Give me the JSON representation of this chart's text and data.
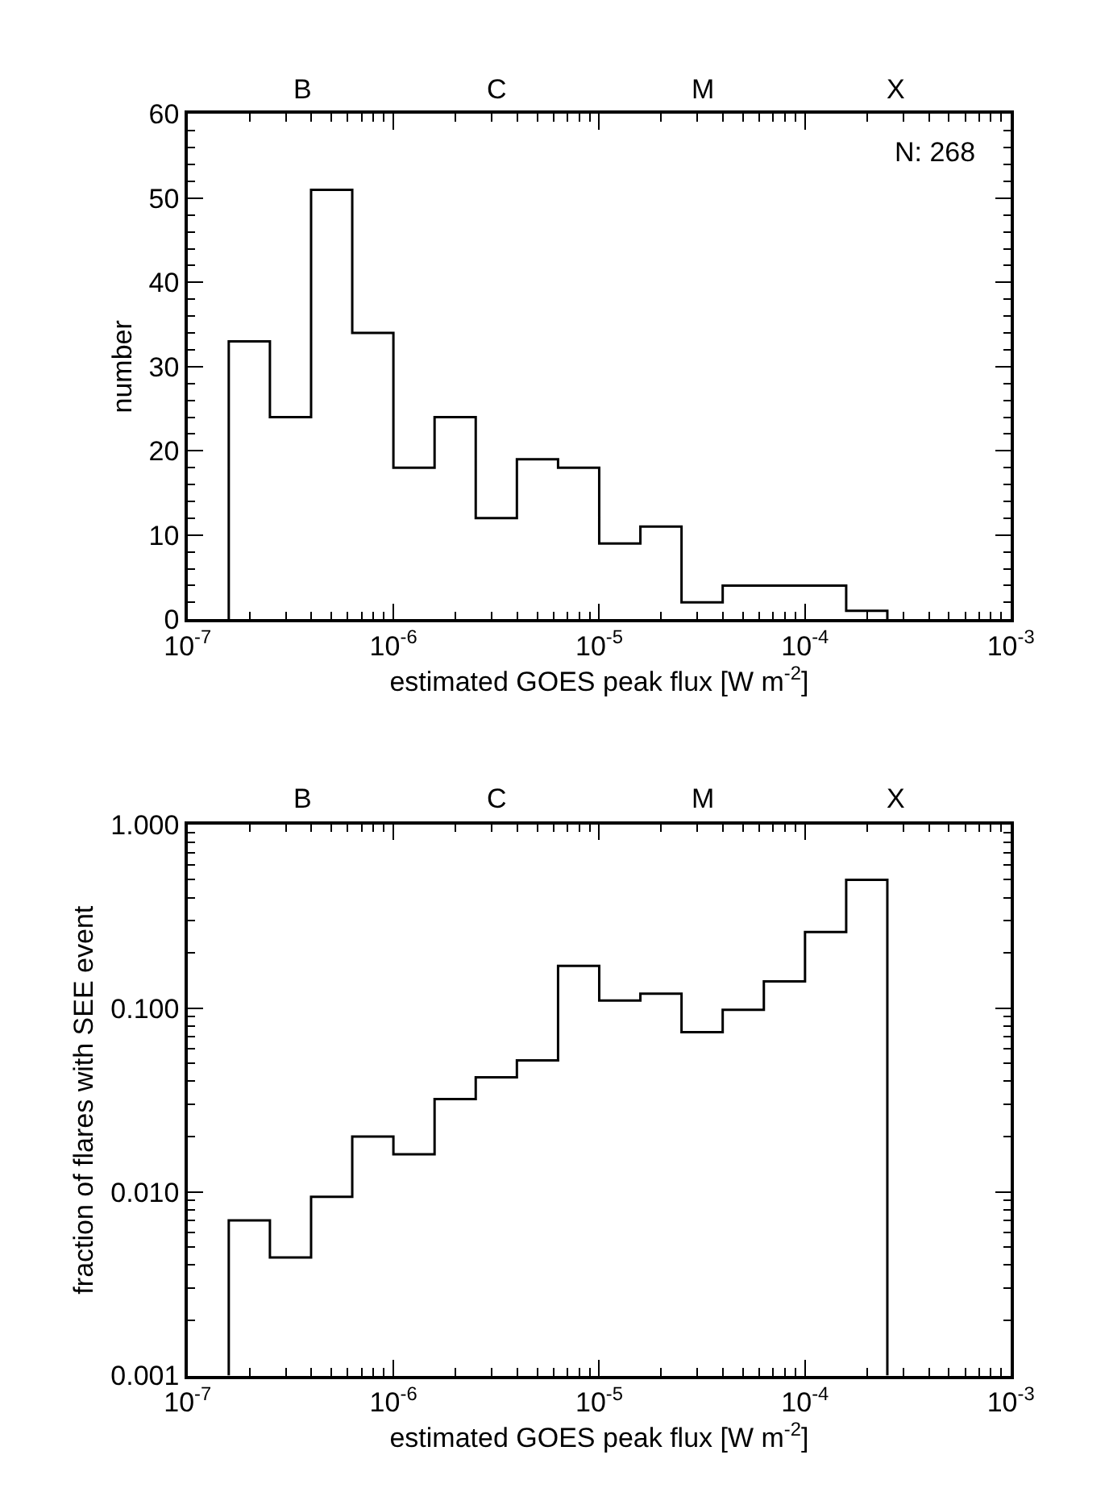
{
  "chart_data": [
    {
      "type": "histogram",
      "bins": [
        1.585e-07,
        2.512e-07,
        3.981e-07,
        6.31e-07,
        1e-06,
        1.585e-06,
        2.512e-06,
        3.981e-06,
        6.31e-06,
        1e-05,
        1.585e-05,
        2.512e-05,
        3.981e-05,
        6.31e-05,
        0.0001,
        0.0001585,
        0.0002512
      ],
      "values": [
        33,
        24,
        51,
        34,
        18,
        24,
        12,
        19,
        18,
        9,
        11,
        2,
        4,
        4,
        4,
        1
      ],
      "color": "#000000",
      "xlabel": "estimated GOES peak flux [W m$^{-2}$]",
      "ylabel": "number",
      "log": "x",
      "xlim": [
        1e-07,
        0.001
      ],
      "xticks": [
        {
          "value": 1e-07,
          "label": "10$^{-7}$"
        },
        {
          "value": 1e-06,
          "label": "10$^{-6}$"
        },
        {
          "value": 1e-05,
          "label": "10$^{-5}$"
        },
        {
          "value": 0.0001,
          "label": "10$^{-4}$"
        },
        {
          "value": 0.001,
          "label": "10$^{-3}$"
        }
      ],
      "ylim": [
        0,
        60
      ],
      "yticks": [
        0,
        10,
        20,
        30,
        40,
        50,
        60
      ],
      "annotations": [
        "B",
        "C",
        "M",
        "X",
        "N: 268"
      ]
    },
    {
      "type": "histogram",
      "bins": [
        1.585e-07,
        2.512e-07,
        3.981e-07,
        6.31e-07,
        1e-06,
        1.585e-06,
        2.512e-06,
        3.981e-06,
        6.31e-06,
        1e-05,
        1.585e-05,
        2.512e-05,
        3.981e-05,
        6.31e-05,
        0.0001,
        0.0001585,
        0.0002512
      ],
      "values": [
        0.007,
        0.0044,
        0.0094,
        0.02,
        0.016,
        0.032,
        0.042,
        0.052,
        0.17,
        0.11,
        0.12,
        0.074,
        0.098,
        0.14,
        0.26,
        0.5
      ],
      "color": "#000000",
      "xlabel": "estimated GOES peak flux [W m$^{-2}$]",
      "ylabel": "fraction of flares with SEE event",
      "log": "xy",
      "xlim": [
        1e-07,
        0.001
      ],
      "xticks": [
        {
          "value": 1e-07,
          "label": "10$^{-7}$"
        },
        {
          "value": 1e-06,
          "label": "10$^{-6}$"
        },
        {
          "value": 1e-05,
          "label": "10$^{-5}$"
        },
        {
          "value": 0.0001,
          "label": "10$^{-4}$"
        },
        {
          "value": 0.001,
          "label": "10$^{-3}$"
        }
      ],
      "ylim": [
        0.001,
        1
      ],
      "yticks": [
        {
          "value": 0.001,
          "label": "0.001"
        },
        {
          "value": 0.01,
          "label": "0.010"
        },
        {
          "value": 0.1,
          "label": "0.100"
        },
        {
          "value": 1,
          "label": "1.000"
        }
      ],
      "annotations": [
        "B",
        "C",
        "M",
        "X"
      ]
    }
  ]
}
